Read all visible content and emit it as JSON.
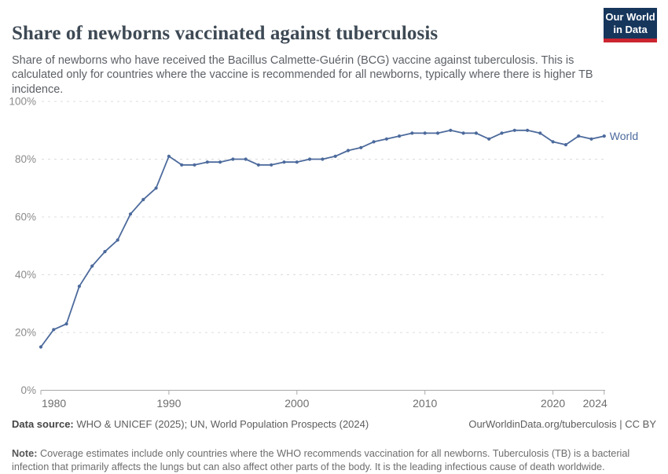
{
  "header": {
    "title": "Share of newborns vaccinated against tuberculosis",
    "subtitle": "Share of newborns who have received the Bacillus Calmette-Guérin (BCG) vaccine against tuberculosis. This is calculated only for countries where the vaccine is recommended for all newborns, typically where there is higher TB incidence.",
    "logo": {
      "line1": "Our World",
      "line2": "in Data",
      "bg_color": "#16365c",
      "stripe_color": "#cb2530"
    }
  },
  "chart_data": {
    "type": "line",
    "title": "Share of newborns vaccinated against tuberculosis",
    "xlabel": "",
    "ylabel": "",
    "xlim": [
      1980,
      2024
    ],
    "ylim": [
      0,
      100
    ],
    "grid": "horizontal-dashed",
    "legend_position": "end-of-line-label",
    "x_ticks": [
      1980,
      1990,
      2000,
      2010,
      2020,
      2024
    ],
    "y_ticks": [
      0,
      20,
      40,
      60,
      80,
      100
    ],
    "y_tick_suffix": "%",
    "series": [
      {
        "name": "World",
        "color": "#4c6a9c",
        "x": [
          1980,
          1981,
          1982,
          1983,
          1984,
          1985,
          1986,
          1987,
          1988,
          1989,
          1990,
          1991,
          1992,
          1993,
          1994,
          1995,
          1996,
          1997,
          1998,
          1999,
          2000,
          2001,
          2002,
          2003,
          2004,
          2005,
          2006,
          2007,
          2008,
          2009,
          2010,
          2011,
          2012,
          2013,
          2014,
          2015,
          2016,
          2017,
          2018,
          2019,
          2020,
          2021,
          2022,
          2023,
          2024
        ],
        "values": [
          15,
          21,
          23,
          36,
          43,
          48,
          52,
          61,
          66,
          70,
          81,
          78,
          78,
          79,
          79,
          80,
          80,
          78,
          78,
          79,
          79,
          80,
          80,
          81,
          83,
          84,
          86,
          87,
          88,
          89,
          89,
          89,
          90,
          89,
          89,
          87,
          89,
          90,
          90,
          89,
          86,
          85,
          88,
          87,
          88
        ]
      }
    ],
    "colors": {
      "gridline": "#dcdcdc",
      "axis": "#a9a9a9",
      "y_tick_label": "#8b8b8b",
      "x_tick_label": "#6e6e6e"
    }
  },
  "footer": {
    "source_label": "Data source:",
    "source_text": " WHO & UNICEF (2025); UN, World Population Prospects (2024)",
    "rights": "OurWorldinData.org/tuberculosis | CC BY",
    "note_label": "Note:",
    "note_text": " Coverage estimates include only countries where the WHO recommends vaccination for all newborns. Tuberculosis (TB) is a bacterial infection that primarily affects the lungs but can also affect other parts of the body. It is the leading infectious cause of death worldwide."
  }
}
